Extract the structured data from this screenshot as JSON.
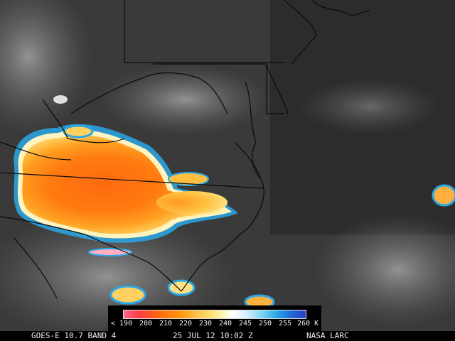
{
  "footer": {
    "satellite": "GOES-E 10.7 BAND 4",
    "timestamp": "25 JUL 12 10:02 Z",
    "credit": "NASA LARC"
  },
  "colorbar": {
    "labels": [
      "< 190",
      "200",
      "210",
      "220",
      "230",
      "240",
      "245",
      "250",
      "255",
      "260 K"
    ]
  },
  "colors": {
    "cold_core": "#ff6a10",
    "mid_cloud": "#ffb040",
    "warm_edge": "#2aa8e8",
    "background": "#3a3a3a"
  }
}
